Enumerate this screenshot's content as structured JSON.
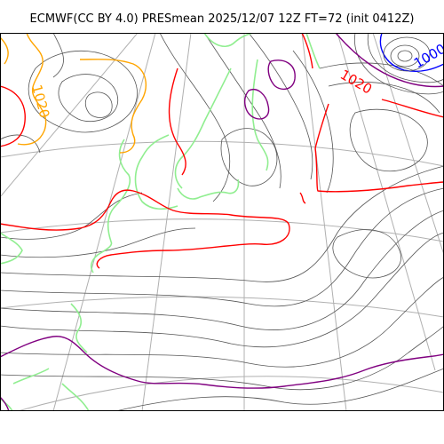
{
  "title": "ECMWF(CC BY 4.0) PRESmean 2025/12/07 12Z FT=72 (init 0412Z)",
  "map": {
    "variable": "PRESmean",
    "contour_labels": [
      {
        "text": "1020",
        "color": "#ff0000"
      },
      {
        "text": "1020",
        "color": "#ffa500"
      },
      {
        "text": "1000",
        "color": "#0000ff"
      }
    ],
    "colors": {
      "isobar": "#555555",
      "isobar_1020": "#ff0000",
      "isobar_1020_alt": "#ffa500",
      "isobar_1000": "#0000ff",
      "isobar_1040": "#800080",
      "coastline": "#90ee90",
      "graticule": "#b0b0b0"
    }
  }
}
